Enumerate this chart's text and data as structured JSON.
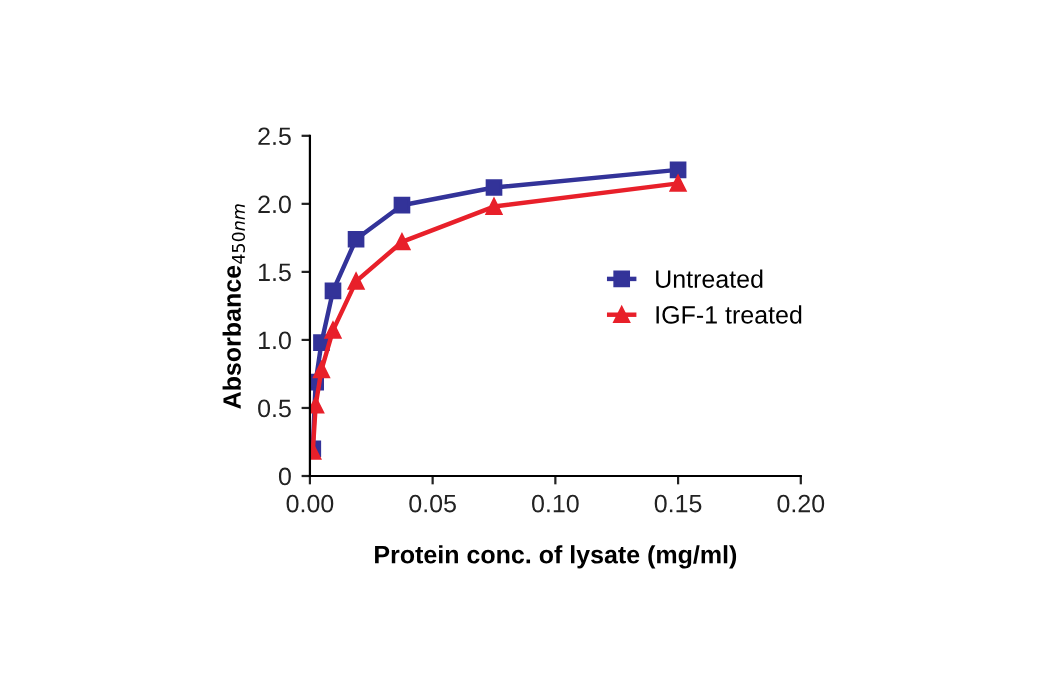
{
  "chart_data": {
    "type": "line",
    "xlabel": "Protein conc. of lysate (mg/ml)",
    "ylabel": "Absorbance$_{450nm}$",
    "x": [
      0.00117,
      0.00234,
      0.0047,
      0.0094,
      0.0188,
      0.0375,
      0.075,
      0.15
    ],
    "series": [
      {
        "name": "Untreated",
        "color": "#333399",
        "marker": "square",
        "values": [
          0.2,
          0.69,
          0.98,
          1.36,
          1.74,
          1.99,
          2.12,
          2.25
        ]
      },
      {
        "name": "IGF-1 treated",
        "color": "#e8202a",
        "marker": "triangle",
        "values": [
          0.18,
          0.52,
          0.78,
          1.07,
          1.43,
          1.72,
          1.98,
          2.15
        ]
      }
    ],
    "xlim": [
      0,
      0.2
    ],
    "ylim": [
      0,
      2.5
    ],
    "xticks": [
      {
        "value": 0,
        "label": "0.00"
      },
      {
        "value": 0.05,
        "label": "0.05"
      },
      {
        "value": 0.1,
        "label": "0.10"
      },
      {
        "value": 0.15,
        "label": "0.15"
      },
      {
        "value": 0.2,
        "label": "0.20"
      }
    ],
    "yticks": [
      0,
      {
        "value": 0.5,
        "label": "0.5"
      },
      {
        "value": 1,
        "label": "1.0"
      },
      {
        "value": 1.5,
        "label": "1.5"
      },
      {
        "value": 2,
        "label": "2.0"
      },
      {
        "value": 2.5,
        "label": "2.5"
      }
    ],
    "grid": false,
    "legend": "right",
    "line_style": "solid"
  }
}
